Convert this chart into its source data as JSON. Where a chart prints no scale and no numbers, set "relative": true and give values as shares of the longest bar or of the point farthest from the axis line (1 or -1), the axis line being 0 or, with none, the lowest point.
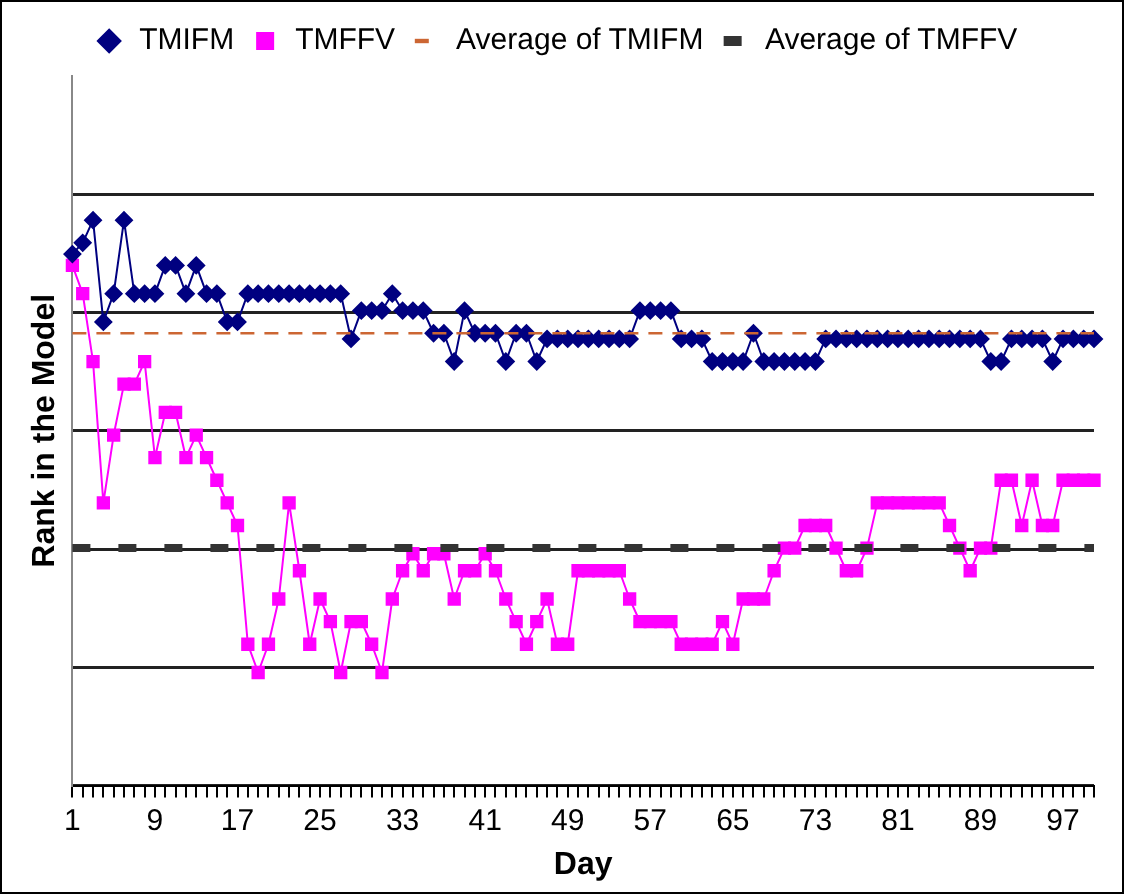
{
  "chart_data": {
    "type": "line",
    "relative": true,
    "xlabel": "Day",
    "ylabel": "Rank in the Model",
    "grid": "y",
    "legend": "top",
    "categories": [
      "1",
      null,
      null,
      null,
      null,
      null,
      null,
      null,
      "9",
      null,
      null,
      null,
      null,
      null,
      null,
      null,
      "17",
      null,
      null,
      null,
      null,
      null,
      null,
      null,
      "25",
      null,
      null,
      null,
      null,
      null,
      null,
      null,
      "33",
      null,
      null,
      null,
      null,
      null,
      null,
      null,
      "41",
      null,
      null,
      null,
      null,
      null,
      null,
      null,
      "49",
      null,
      null,
      null,
      null,
      null,
      null,
      null,
      "57",
      null,
      null,
      null,
      null,
      null,
      null,
      null,
      "65",
      null,
      null,
      null,
      null,
      null,
      null,
      null,
      "73",
      null,
      null,
      null,
      null,
      null,
      null,
      null,
      "81",
      null,
      null,
      null,
      null,
      null,
      null,
      null,
      "89",
      null,
      null,
      null,
      null,
      null,
      null,
      null,
      "97",
      null,
      null,
      null
    ],
    "series": [
      {
        "name": "TMIFM",
        "color": "#000080",
        "marker": "diamond",
        "values": [
          0.94,
          0.96,
          1,
          0.82,
          0.87,
          1,
          0.87,
          0.87,
          0.87,
          0.92,
          0.92,
          0.87,
          0.92,
          0.87,
          0.87,
          0.82,
          0.82,
          0.87,
          0.87,
          0.87,
          0.87,
          0.87,
          0.87,
          0.87,
          0.87,
          0.87,
          0.87,
          0.79,
          0.84,
          0.84,
          0.84,
          0.87,
          0.84,
          0.84,
          0.84,
          0.8,
          0.8,
          0.75,
          0.84,
          0.8,
          0.8,
          0.8,
          0.75,
          0.8,
          0.8,
          0.75,
          0.79,
          0.79,
          0.79,
          0.79,
          0.79,
          0.79,
          0.79,
          0.79,
          0.79,
          0.84,
          0.84,
          0.84,
          0.84,
          0.79,
          0.79,
          0.79,
          0.75,
          0.75,
          0.75,
          0.75,
          0.8,
          0.75,
          0.75,
          0.75,
          0.75,
          0.75,
          0.75,
          0.79,
          0.79,
          0.79,
          0.79,
          0.79,
          0.79,
          0.79,
          0.79,
          0.79,
          0.79,
          0.79,
          0.79,
          0.79,
          0.79,
          0.79,
          0.79,
          0.75,
          0.75,
          0.79,
          0.79,
          0.79,
          0.79,
          0.75,
          0.79,
          0.79,
          0.79,
          0.79
        ]
      },
      {
        "name": "TMFFV",
        "color": "#ff00ff",
        "marker": "square",
        "values": [
          0.92,
          0.87,
          0.75,
          0.5,
          0.62,
          0.71,
          0.71,
          0.75,
          0.58,
          0.66,
          0.66,
          0.58,
          0.62,
          0.58,
          0.54,
          0.5,
          0.46,
          0.25,
          0.2,
          0.25,
          0.33,
          0.5,
          0.38,
          0.25,
          0.33,
          0.29,
          0.2,
          0.29,
          0.29,
          0.25,
          0.2,
          0.33,
          0.38,
          0.41,
          0.38,
          0.41,
          0.41,
          0.33,
          0.38,
          0.38,
          0.41,
          0.38,
          0.33,
          0.29,
          0.25,
          0.29,
          0.33,
          0.25,
          0.25,
          0.38,
          0.38,
          0.38,
          0.38,
          0.38,
          0.33,
          0.29,
          0.29,
          0.29,
          0.29,
          0.25,
          0.25,
          0.25,
          0.25,
          0.29,
          0.25,
          0.33,
          0.33,
          0.33,
          0.38,
          0.42,
          0.42,
          0.46,
          0.46,
          0.46,
          0.42,
          0.38,
          0.38,
          0.42,
          0.5,
          0.5,
          0.5,
          0.5,
          0.5,
          0.5,
          0.5,
          0.46,
          0.42,
          0.38,
          0.42,
          0.42,
          0.54,
          0.54,
          0.46,
          0.54,
          0.46,
          0.46,
          0.54,
          0.54,
          0.54,
          0.54
        ]
      }
    ],
    "ref_lines": [
      {
        "axis": "y",
        "value": 0.8,
        "label": "Average of TMIFM",
        "color": "#cc6633",
        "line_style": "dashed"
      },
      {
        "axis": "y",
        "value": 0.42,
        "label": "Average of TMFFV",
        "color": "#333333",
        "line_style": "dashed"
      }
    ]
  }
}
